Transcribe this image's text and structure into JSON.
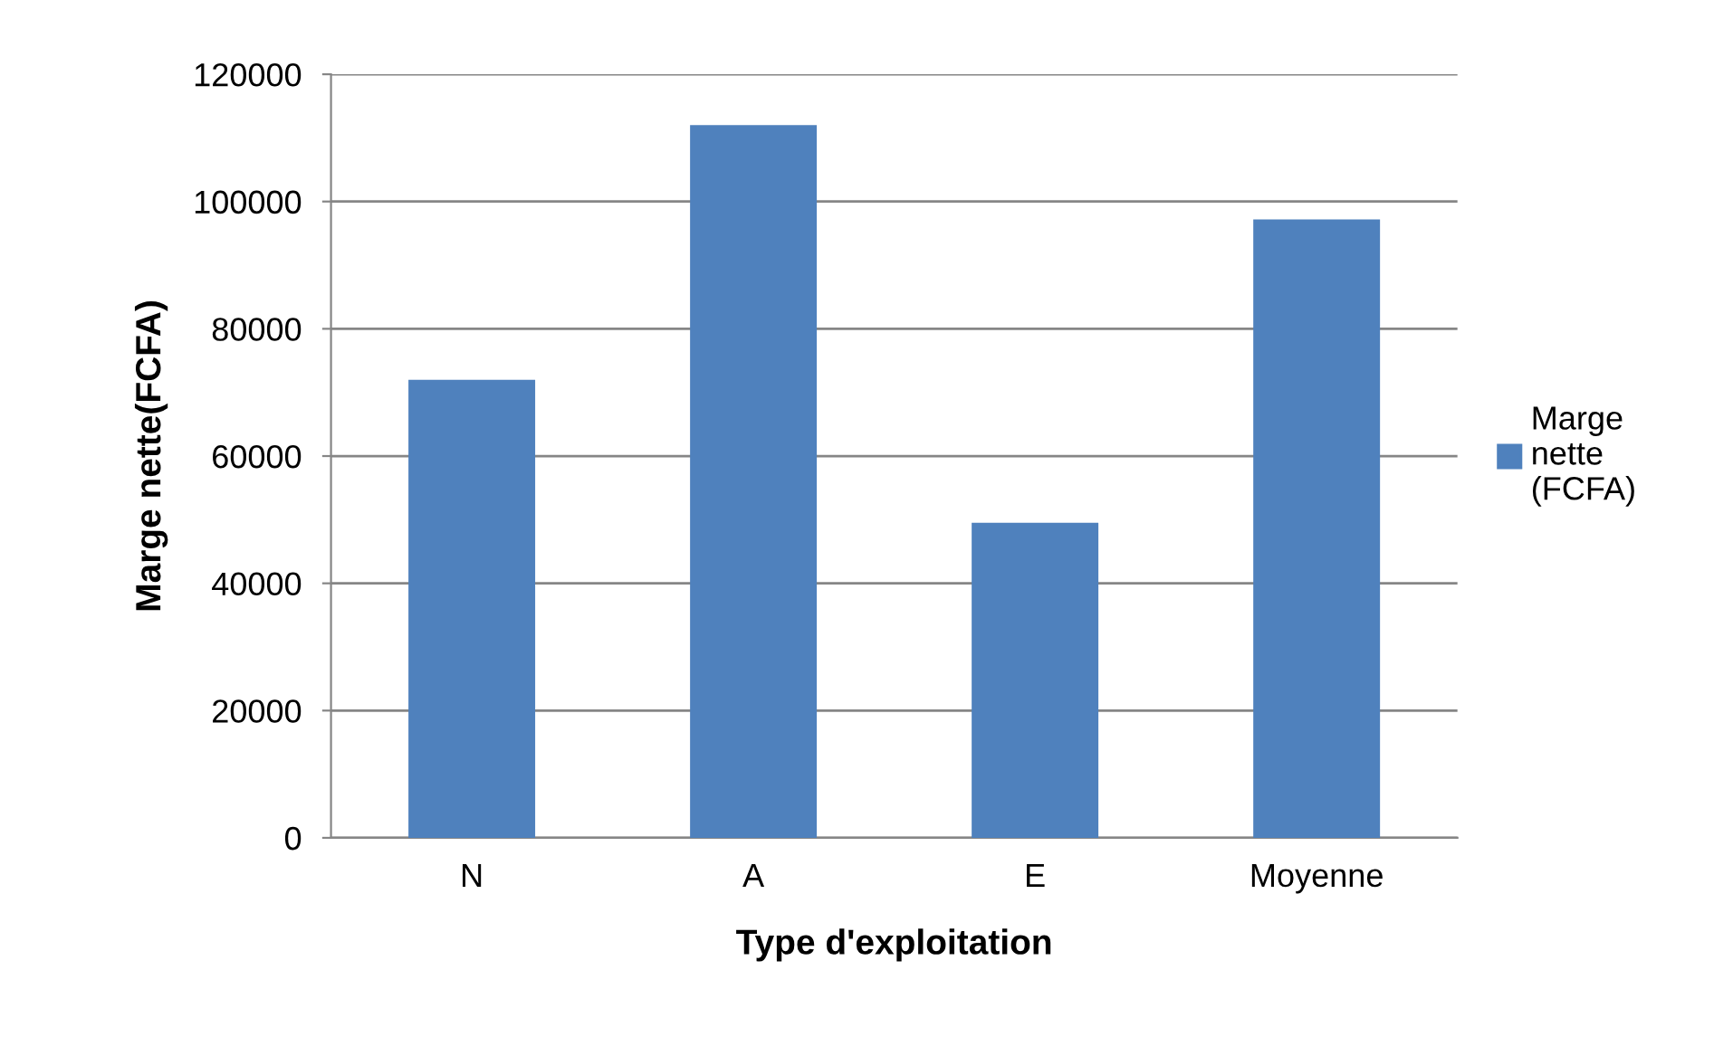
{
  "chart_data": {
    "type": "bar",
    "xlabel": "Type d'exploitation",
    "ylabel": "Marge nette(FCFA)",
    "categories": [
      "N",
      "A",
      "E",
      "Moyenne"
    ],
    "series": [
      {
        "name": "Marge nette (FCFA)",
        "color": "#4f81bd",
        "values": [
          72000,
          112000,
          49500,
          97200
        ]
      }
    ],
    "ylim": [
      0,
      120000
    ],
    "yticks": [
      0,
      20000,
      40000,
      60000,
      80000,
      100000,
      120000
    ],
    "grid": "y",
    "legend": "right"
  }
}
